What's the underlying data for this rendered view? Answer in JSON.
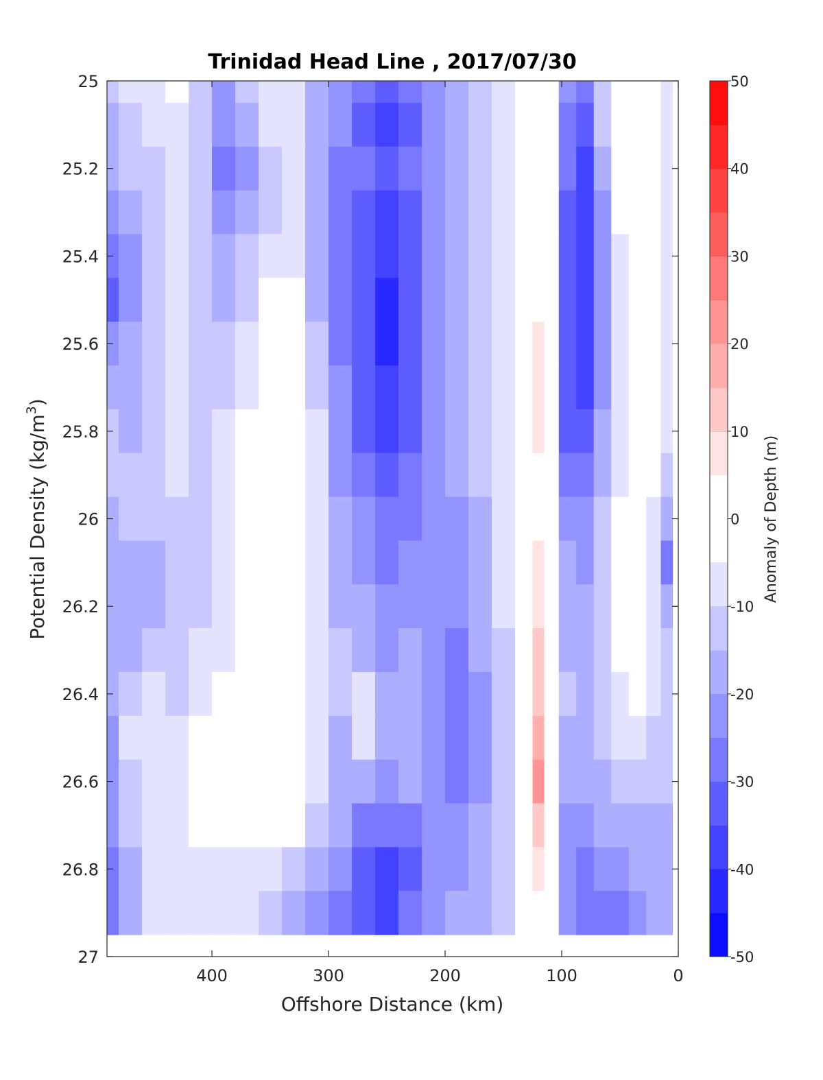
{
  "chart_data": {
    "type": "heatmap",
    "title": "Trinidad Head Line , 2017/07/30",
    "xlabel": "Offshore Distance (km)",
    "ylabel": "Potential Density (kg/m3)",
    "ylabel_main": "Potential Density (kg/m",
    "ylabel_sup": "3",
    "ylabel_close": ")",
    "xlim": [
      490,
      0
    ],
    "ylim": [
      25,
      27
    ],
    "y_reversed": true,
    "x_reversed": true,
    "x_ticks": [
      400,
      300,
      200,
      100,
      0
    ],
    "y_ticks": [
      "25",
      "25.2",
      "25.4",
      "25.6",
      "25.8",
      "26",
      "26.2",
      "26.4",
      "26.6",
      "26.8",
      "27"
    ],
    "grid": false,
    "colorbar": {
      "label": "Anomaly of Depth (m)",
      "range": [
        -50,
        50
      ],
      "ticks": [
        "50",
        "40",
        "30",
        "20",
        "10",
        "0",
        "-10",
        "-20",
        "-30",
        "-40",
        "-50"
      ],
      "levels": [
        -50,
        -45,
        -40,
        -35,
        -30,
        -25,
        -20,
        -15,
        -10,
        -5,
        0,
        5,
        10,
        15,
        20,
        25,
        30,
        35,
        40,
        45,
        50
      ],
      "low_color": "#0000ff",
      "mid_color": "#ffffff",
      "high_color": "#ff0000"
    },
    "grid_x": [
      490,
      470,
      450,
      430,
      410,
      390,
      370,
      350,
      330,
      310,
      290,
      270,
      250,
      230,
      210,
      190,
      170,
      150,
      130,
      120,
      110,
      95,
      80,
      65,
      50,
      35,
      20,
      10
    ],
    "grid_y": [
      25.0,
      25.1,
      25.2,
      25.3,
      25.4,
      25.5,
      25.6,
      25.7,
      25.8,
      25.9,
      26.0,
      26.1,
      26.2,
      26.3,
      26.4,
      26.5,
      26.6,
      26.7,
      26.8,
      26.9
    ],
    "values": [
      [
        -15,
        -10,
        -8,
        -5,
        -12,
        -22,
        -15,
        -8,
        -10,
        -18,
        -25,
        -30,
        -35,
        -30,
        -25,
        -20,
        -15,
        -10,
        -3,
        -2,
        -3,
        -25,
        -30,
        -15,
        -5,
        -3,
        -5,
        -10
      ],
      [
        -16,
        -12,
        -10,
        -6,
        -12,
        -25,
        -18,
        -10,
        -10,
        -18,
        -25,
        -32,
        -38,
        -32,
        -25,
        -20,
        -15,
        -10,
        -3,
        -2,
        -3,
        -28,
        -35,
        -15,
        -5,
        -3,
        -5,
        -10
      ],
      [
        -20,
        -15,
        -12,
        -8,
        -14,
        -28,
        -22,
        -12,
        -10,
        -18,
        -26,
        -30,
        -35,
        -30,
        -25,
        -20,
        -15,
        -10,
        -3,
        -2,
        -3,
        -30,
        -38,
        -20,
        -5,
        -3,
        -5,
        -10
      ],
      [
        -25,
        -18,
        -12,
        -10,
        -15,
        -25,
        -20,
        -12,
        -10,
        -18,
        -26,
        -32,
        -38,
        -32,
        -25,
        -20,
        -15,
        -10,
        -3,
        -2,
        -3,
        -32,
        -38,
        -22,
        -5,
        -3,
        -5,
        -10
      ],
      [
        -30,
        -22,
        -14,
        -10,
        -15,
        -20,
        -15,
        -8,
        -8,
        -18,
        -28,
        -35,
        -40,
        -35,
        -25,
        -20,
        -15,
        -10,
        -3,
        -2,
        -3,
        -35,
        -40,
        -22,
        -8,
        -3,
        -5,
        -10
      ],
      [
        -32,
        -22,
        -14,
        -10,
        -12,
        -18,
        -12,
        -5,
        -4,
        -16,
        -28,
        -35,
        -42,
        -35,
        -25,
        -20,
        -15,
        -10,
        -3,
        4,
        -3,
        -35,
        -40,
        -22,
        -8,
        -3,
        -5,
        -10
      ],
      [
        -25,
        -20,
        -14,
        -10,
        -12,
        -15,
        -10,
        -5,
        -3,
        -14,
        -26,
        -35,
        -42,
        -35,
        -25,
        -20,
        -15,
        -10,
        -3,
        6,
        -3,
        -35,
        -40,
        -22,
        -8,
        -3,
        -5,
        -10
      ],
      [
        -18,
        -18,
        -14,
        -10,
        -12,
        -14,
        -8,
        -3,
        -1,
        -12,
        -25,
        -33,
        -40,
        -33,
        -25,
        -20,
        -15,
        -10,
        -3,
        8,
        -3,
        -35,
        -38,
        -22,
        -8,
        -3,
        -5,
        -10
      ],
      [
        -15,
        -16,
        -14,
        -10,
        -12,
        -10,
        -3,
        -5,
        2,
        -10,
        -24,
        -32,
        -38,
        -32,
        -25,
        -20,
        -15,
        -10,
        -3,
        6,
        -3,
        -32,
        -35,
        -20,
        -8,
        -3,
        -5,
        -10
      ],
      [
        -14,
        -15,
        -14,
        -10,
        -12,
        -8,
        2,
        -5,
        -2,
        -10,
        -22,
        -30,
        -35,
        -30,
        -25,
        -20,
        -15,
        -10,
        -3,
        3,
        -3,
        -28,
        -30,
        -18,
        -6,
        -3,
        -5,
        -12
      ],
      [
        -16,
        -12,
        -14,
        -12,
        -12,
        -8,
        3,
        -4,
        -2,
        -10,
        -20,
        -25,
        -30,
        -28,
        -25,
        -22,
        -16,
        -10,
        -3,
        4,
        -3,
        -22,
        -25,
        -15,
        -3,
        -3,
        -8,
        -20
      ],
      [
        -20,
        -18,
        -16,
        -14,
        -12,
        -8,
        3,
        -3,
        -3,
        -9,
        -18,
        -22,
        -28,
        -25,
        -25,
        -22,
        -16,
        -10,
        -3,
        6,
        -3,
        -20,
        -22,
        -15,
        -3,
        -3,
        -10,
        -30
      ],
      [
        -18,
        -18,
        -16,
        -14,
        -12,
        -8,
        2,
        -3,
        -4,
        -9,
        -16,
        -20,
        -25,
        -22,
        -25,
        -24,
        -18,
        -10,
        -3,
        8,
        -3,
        -18,
        -20,
        -15,
        -3,
        2,
        -10,
        -20
      ],
      [
        -18,
        -16,
        -14,
        -12,
        -10,
        -6,
        -2,
        -3,
        -5,
        -10,
        -14,
        -18,
        -22,
        -18,
        -22,
        -28,
        -20,
        -12,
        -3,
        10,
        -3,
        -16,
        -20,
        -15,
        -4,
        2,
        -10,
        -15
      ],
      [
        -20,
        -12,
        -10,
        -12,
        -8,
        -3,
        2,
        -3,
        -4,
        -10,
        -14,
        -6,
        -16,
        -18,
        -22,
        -30,
        -22,
        -12,
        -3,
        14,
        -3,
        -15,
        -18,
        -14,
        -6,
        -4,
        -10,
        -15
      ],
      [
        -22,
        -10,
        -6,
        -10,
        -5,
        -2,
        -3,
        -2,
        2,
        -10,
        -16,
        -10,
        -20,
        -18,
        -22,
        -28,
        -22,
        -12,
        -3,
        18,
        -3,
        -16,
        -18,
        -14,
        -10,
        -8,
        -12,
        -15
      ],
      [
        -25,
        -12,
        -6,
        -8,
        -2,
        -2,
        -4,
        -4,
        2,
        -10,
        -18,
        -20,
        -24,
        -20,
        -22,
        -26,
        -22,
        -12,
        -3,
        20,
        -3,
        -18,
        -20,
        -16,
        -14,
        -12,
        -14,
        -15
      ],
      [
        -25,
        -14,
        -8,
        -8,
        -4,
        -3,
        -4,
        -5,
        -3,
        -12,
        -20,
        -26,
        -28,
        -26,
        -22,
        -22,
        -20,
        -12,
        -4,
        10,
        -4,
        -22,
        -22,
        -20,
        -18,
        -16,
        -18,
        -18
      ],
      [
        -30,
        -16,
        -10,
        -10,
        -8,
        -6,
        -6,
        -10,
        -12,
        -18,
        -24,
        -32,
        -40,
        -32,
        -24,
        -22,
        -20,
        -12,
        -4,
        6,
        -4,
        -24,
        -26,
        -24,
        -22,
        -20,
        -20,
        -20
      ],
      [
        -30,
        -16,
        -10,
        -10,
        -8,
        -6,
        -6,
        -14,
        -18,
        -22,
        -26,
        -32,
        -38,
        -30,
        -22,
        -20,
        -16,
        -12,
        -4,
        4,
        -4,
        -24,
        -26,
        -26,
        -26,
        -22,
        -20,
        -20
      ]
    ]
  }
}
